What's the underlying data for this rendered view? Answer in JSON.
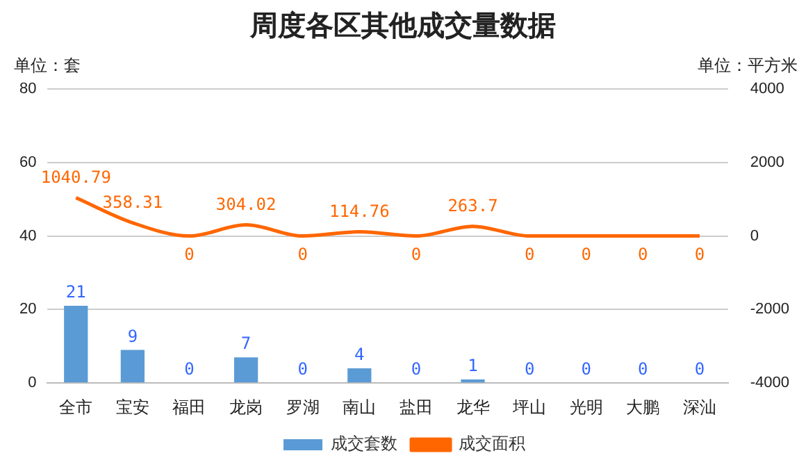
{
  "chart_data": {
    "type": "bar",
    "title": "周度各区其他成交量数据",
    "ylabel": "单位：套",
    "y2label": "单位：平方米",
    "categories": [
      "全市",
      "宝安",
      "福田",
      "龙岗",
      "罗湖",
      "南山",
      "盐田",
      "龙华",
      "坪山",
      "光明",
      "大鹏",
      "深汕"
    ],
    "series": [
      {
        "name": "成交套数",
        "color": "#5b9bd5",
        "values": [
          21,
          9,
          0,
          7,
          0,
          4,
          0,
          1,
          0,
          0,
          0,
          0
        ]
      },
      {
        "name": "成交面积",
        "type": "line",
        "axis": "y2",
        "color": "#ff6600",
        "values": [
          1040.79,
          358.31,
          0,
          304.02,
          0,
          114.76,
          0,
          263.7,
          0,
          0,
          0,
          0
        ]
      }
    ],
    "ylim": [
      0,
      80
    ],
    "yticks": [
      0,
      20,
      40,
      60,
      80
    ],
    "y2lim": [
      -4000,
      4000
    ],
    "y2ticks": [
      -4000,
      -2000,
      0,
      2000,
      4000
    ],
    "grid": "y",
    "legend": "bottom",
    "data_labels": true,
    "marker": "none"
  }
}
